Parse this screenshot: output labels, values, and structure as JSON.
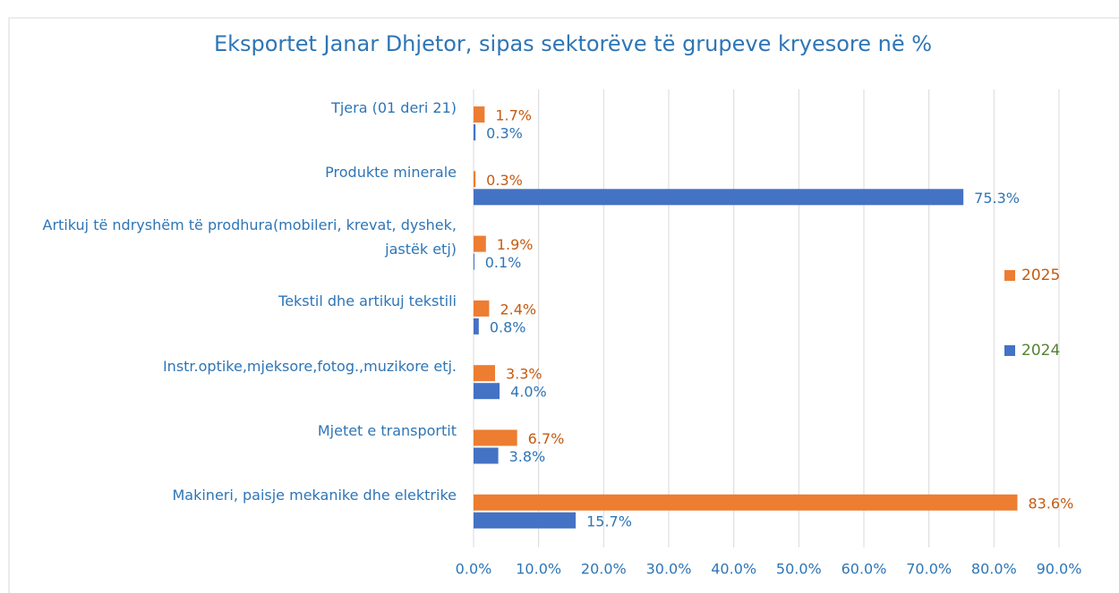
{
  "chart_data": {
    "type": "bar",
    "orientation": "horizontal",
    "title": "Eksportet Janar Dhjetor, sipas sektorëve të grupeve kryesore në %",
    "categories": [
      "Tjera (01 deri 21)",
      "Produkte minerale",
      "Artikuj të ndryshëm të prodhura(mobileri, krevat, dyshek, jastëk etj)",
      "Tekstil dhe artikuj tekstili",
      "Instr.optike,mjeksore,fotog.,muzikore etj.",
      "Mjetet e transportit",
      "Makineri, paisje mekanike dhe elektrike"
    ],
    "series": [
      {
        "name": "2025",
        "color": "#ed7d31",
        "values": [
          1.7,
          0.3,
          1.9,
          2.4,
          3.3,
          6.7,
          83.6
        ],
        "value_labels": [
          "1.7%",
          "0.3%",
          "1.9%",
          "2.4%",
          "3.3%",
          "6.7%",
          "83.6%"
        ]
      },
      {
        "name": "2024",
        "color": "#4472c4",
        "values": [
          0.3,
          75.3,
          0.1,
          0.8,
          4.0,
          3.8,
          15.7
        ],
        "value_labels": [
          "0.3%",
          "75.3%",
          "0.1%",
          "0.8%",
          "4.0%",
          "3.8%",
          "15.7%"
        ]
      }
    ],
    "xlim": [
      0,
      90
    ],
    "xticks": [
      {
        "value": 0,
        "label": "0.0%"
      },
      {
        "value": 10,
        "label": "10.0%"
      },
      {
        "value": 20,
        "label": "20.0%"
      },
      {
        "value": 30,
        "label": "30.0%"
      },
      {
        "value": 40,
        "label": "40.0%"
      },
      {
        "value": 50,
        "label": "50.0%"
      },
      {
        "value": 60,
        "label": "60.0%"
      },
      {
        "value": 70,
        "label": "70.0%"
      },
      {
        "value": 80,
        "label": "80.0%"
      },
      {
        "value": 90,
        "label": "90.0%"
      }
    ],
    "grid": true,
    "legend": "right"
  }
}
